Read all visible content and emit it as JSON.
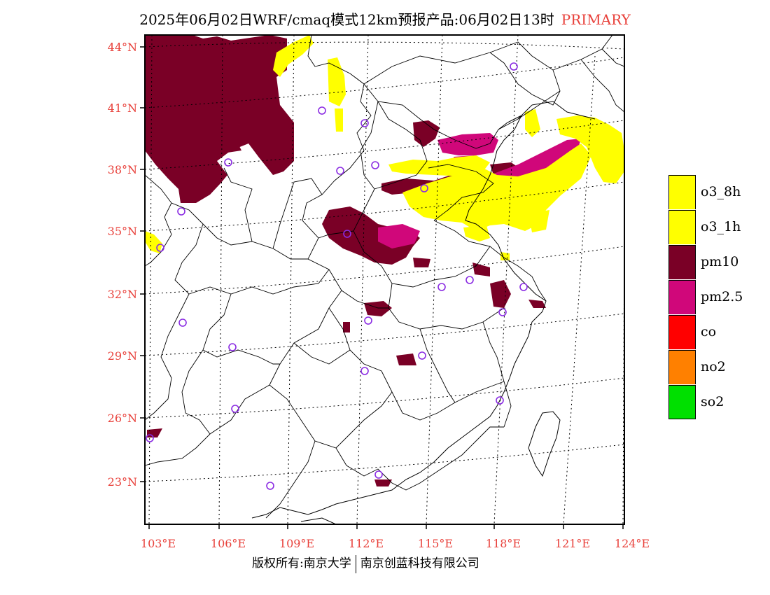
{
  "title": {
    "main": "2025年06月02日WRF/cmaq模式12km预报产品:06月02日13时",
    "tag": "PRIMARY"
  },
  "axes": {
    "lat_labels": [
      "44°N",
      "41°N",
      "38°N",
      "35°N",
      "32°N",
      "29°N",
      "26°N",
      "23°N"
    ],
    "lon_labels": [
      "103°E",
      "106°E",
      "109°E",
      "112°E",
      "115°E",
      "118°E",
      "121°E",
      "124°E"
    ]
  },
  "legend": [
    {
      "label": "o3_8h",
      "color": "#ffff00"
    },
    {
      "label": "o3_1h",
      "color": "#ffff00"
    },
    {
      "label": "pm10",
      "color": "#7a0026"
    },
    {
      "label": "pm2.5",
      "color": "#d0077a"
    },
    {
      "label": "co",
      "color": "#ff0000"
    },
    {
      "label": "no2",
      "color": "#ff8000"
    },
    {
      "label": "so2",
      "color": "#00e000"
    }
  ],
  "footer": {
    "left": "版权所有:南京大学",
    "right": "南京创蓝科技有限公司"
  },
  "colors": {
    "axis_label": "#e8403a",
    "station_marker": "#8a2be2",
    "o3": "#ffff00",
    "pm10": "#7a0026",
    "pm25": "#d0077a"
  }
}
